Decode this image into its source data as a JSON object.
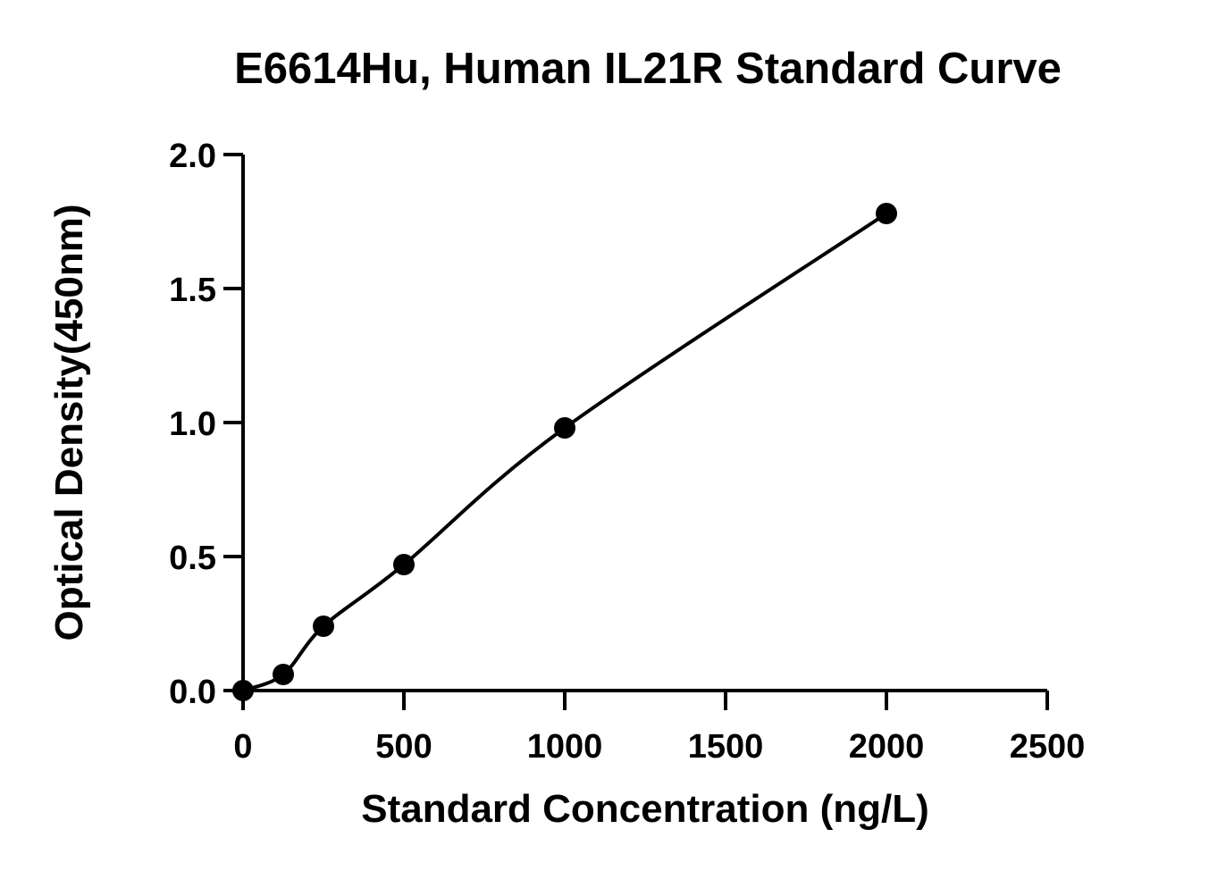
{
  "chart_data": {
    "type": "scatter",
    "title": "E6614Hu, Human IL21R Standard Curve",
    "xlabel": "Standard Concentration (ng/L)",
    "ylabel": "Optical Density(450nm)",
    "xlim": [
      0,
      2500
    ],
    "ylim": [
      0,
      2.0
    ],
    "xticks": [
      0,
      500,
      1000,
      1500,
      2000,
      2500
    ],
    "yticks": [
      0.0,
      0.5,
      1.0,
      1.5,
      2.0
    ],
    "xtick_labels": [
      "0",
      "500",
      "1000",
      "1500",
      "2000",
      "2500"
    ],
    "ytick_labels": [
      "0.0",
      "0.5",
      "1.0",
      "1.5",
      "2.0"
    ],
    "grid": false,
    "fit_curve": true,
    "points": [
      {
        "x": 0,
        "y": 0.0
      },
      {
        "x": 125,
        "y": 0.06
      },
      {
        "x": 250,
        "y": 0.24
      },
      {
        "x": 500,
        "y": 0.47
      },
      {
        "x": 1000,
        "y": 0.98
      },
      {
        "x": 2000,
        "y": 1.78
      }
    ]
  }
}
